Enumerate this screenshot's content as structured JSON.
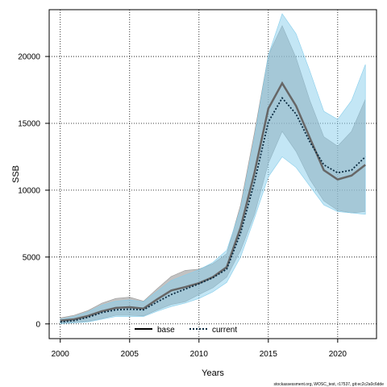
{
  "chart_data": {
    "type": "line",
    "title": "",
    "xlabel": "Years",
    "ylabel": "SSB",
    "xlim": [
      1999.2,
      2022.8
    ],
    "ylim": [
      -1100,
      23500
    ],
    "x_ticks": [
      2000,
      2005,
      2010,
      2015,
      2020
    ],
    "y_ticks": [
      0,
      5000,
      10000,
      15000,
      20000
    ],
    "grid": true,
    "legend_position": "bottom-center",
    "x": [
      2000,
      2001,
      2002,
      2003,
      2004,
      2005,
      2006,
      2007,
      2008,
      2009,
      2010,
      2011,
      2012,
      2013,
      2014,
      2015,
      2016,
      2017,
      2018,
      2019,
      2020,
      2021,
      2022
    ],
    "series": [
      {
        "name": "base",
        "color": "#666666",
        "band_color": "#999999",
        "line_style": "solid",
        "values": [
          250,
          350,
          600,
          950,
          1200,
          1250,
          1150,
          1850,
          2500,
          2750,
          3050,
          3500,
          4250,
          7200,
          11300,
          16100,
          18000,
          16300,
          13900,
          11500,
          10800,
          11100,
          11900
        ],
        "lower": [
          50,
          100,
          200,
          400,
          650,
          650,
          600,
          1050,
          1450,
          1650,
          2200,
          2700,
          3500,
          5500,
          8200,
          12000,
          14400,
          12900,
          10800,
          9200,
          8500,
          8300,
          8400
        ],
        "upper": [
          450,
          650,
          1000,
          1550,
          1900,
          2000,
          1700,
          2650,
          3550,
          4000,
          4100,
          4500,
          5250,
          8900,
          14300,
          20100,
          22300,
          19900,
          16700,
          14000,
          13300,
          14400,
          16800
        ]
      },
      {
        "name": "current",
        "color": "#0a2a40",
        "band_color": "#87ceeb",
        "line_style": "dotted",
        "values": [
          150,
          250,
          500,
          850,
          1050,
          1100,
          1050,
          1650,
          2200,
          2600,
          3000,
          3450,
          4100,
          6800,
          10600,
          15100,
          16900,
          15700,
          13600,
          11900,
          11300,
          11500,
          12500
        ],
        "lower": [
          20,
          80,
          150,
          350,
          550,
          550,
          550,
          950,
          1300,
          1550,
          1900,
          2400,
          3100,
          5000,
          7900,
          11000,
          12500,
          11700,
          10300,
          8900,
          8400,
          8300,
          8200
        ],
        "upper": [
          350,
          550,
          900,
          1400,
          1700,
          1800,
          1650,
          2450,
          3250,
          3650,
          4050,
          4600,
          5500,
          8600,
          13900,
          20100,
          23200,
          21700,
          18900,
          15900,
          15300,
          16700,
          19400
        ]
      }
    ]
  },
  "legend": {
    "base_label": "base",
    "current_label": "current"
  },
  "credit": "stockassessment.org, WOSC_test, r17537, git:ec2c2a0c6dde"
}
